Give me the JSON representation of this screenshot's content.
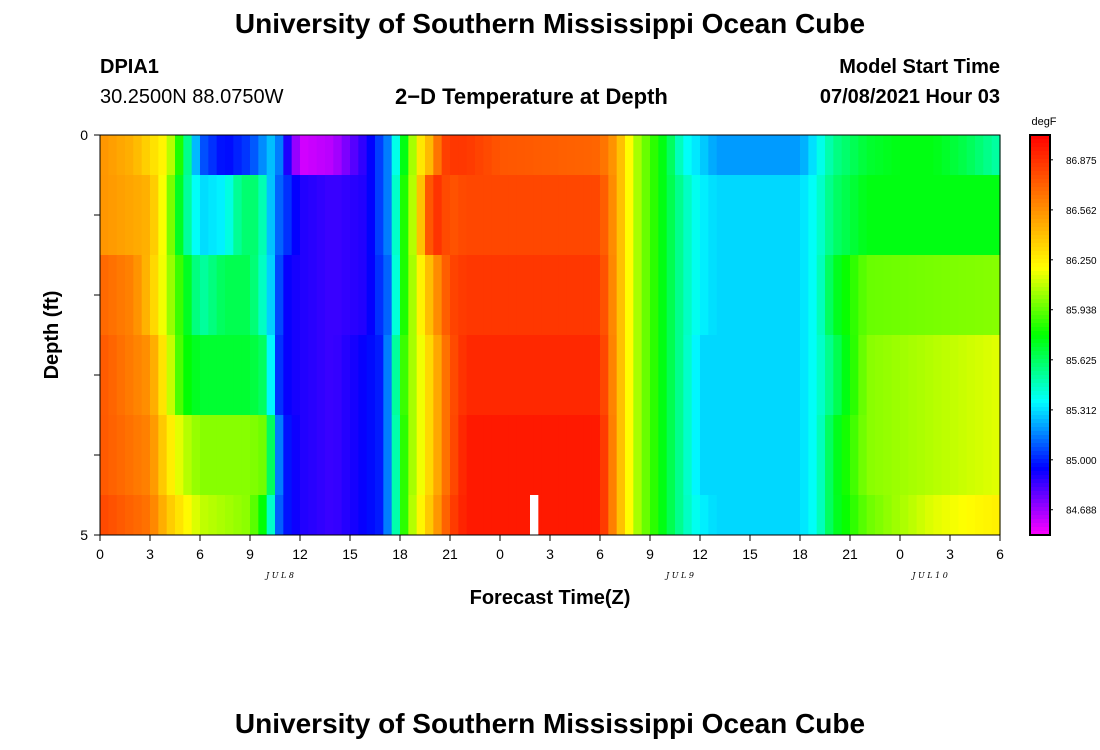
{
  "header": {
    "title": "University of Southern Mississippi Ocean Cube",
    "station": "DPIA1",
    "location": "30.2500N  88.0750W",
    "plot_title": "2−D Temperature at Depth",
    "model_start_label": "Model Start Time",
    "model_start_value": "07/08/2021 Hour 03"
  },
  "footer": {
    "title": "University of Southern Mississippi Ocean Cube"
  },
  "chart_data": {
    "type": "heatmap",
    "title": "2−D Temperature at Depth",
    "xlabel": "Forecast Time(Z)",
    "ylabel": "Depth (ft)",
    "x_range_hours": [
      0,
      54
    ],
    "y_range_ft": [
      0,
      5
    ],
    "x_tick_labels": [
      "0",
      "3",
      "6",
      "9",
      "12",
      "15",
      "18",
      "21",
      "0",
      "3",
      "6",
      "9",
      "12",
      "15",
      "18",
      "21",
      "0",
      "3",
      "6"
    ],
    "y_tick_labels": [
      "0",
      "5"
    ],
    "date_labels": [
      {
        "text": "JUL 8",
        "hour": 12
      },
      {
        "text": "JUL 9",
        "hour": 36
      },
      {
        "text": "JUL 10",
        "hour": 51
      }
    ],
    "colorbar": {
      "unit": "degF",
      "min": 84.53,
      "max": 87.03,
      "labels": [
        "86.875",
        "86.562",
        "86.250",
        "85.938",
        "85.625",
        "85.312",
        "85.000",
        "84.688"
      ],
      "colors": [
        "#ff00ff",
        "#8000ff",
        "#0000ff",
        "#0080ff",
        "#00ffff",
        "#00ff80",
        "#00ff00",
        "#80ff00",
        "#ffff00",
        "#ffc000",
        "#ff8000",
        "#ff4000",
        "#ff0000"
      ]
    },
    "depth_layers": [
      "0-0.5 ft",
      "0.5-1.5 ft",
      "1.5-2.5 ft",
      "2.5-3.5 ft",
      "3.5-4.5 ft",
      "4.5-5 ft"
    ],
    "layers": [
      {
        "depth": "0-0.5 ft",
        "breakpoints": [
          0,
          2,
          4,
          5,
          6,
          7.5,
          9,
          10.5,
          11,
          12,
          14,
          16,
          17.5,
          18,
          18.5,
          19,
          20,
          20.5,
          21,
          22,
          24,
          30,
          31,
          32,
          33,
          34,
          35,
          36,
          37,
          42,
          43,
          44,
          46,
          48,
          50,
          52,
          54
        ],
        "values": [
          86.55,
          86.45,
          86.2,
          85.7,
          85.1,
          84.95,
          85.05,
          85.3,
          85.0,
          84.6,
          84.65,
          84.9,
          85.2,
          85.6,
          85.9,
          86.2,
          86.5,
          86.8,
          86.85,
          86.85,
          86.75,
          86.7,
          86.5,
          86.1,
          85.9,
          85.7,
          85.4,
          85.3,
          85.2,
          85.2,
          85.35,
          85.55,
          85.7,
          85.75,
          85.75,
          85.65,
          85.5
        ]
      },
      {
        "depth": "0.5-1.5 ft",
        "breakpoints": [
          0,
          3,
          4,
          5,
          6,
          7.5,
          8.5,
          9.5,
          10.5,
          12,
          14,
          16,
          17.5,
          18,
          18.5,
          19,
          19.5,
          20,
          21,
          22,
          30,
          31,
          32,
          33,
          34,
          35,
          36,
          37,
          42,
          43,
          44,
          46,
          54
        ],
        "values": [
          86.55,
          86.45,
          86.1,
          85.6,
          85.3,
          85.35,
          85.6,
          85.6,
          85.15,
          84.9,
          84.85,
          84.9,
          85.2,
          85.7,
          85.95,
          86.2,
          86.6,
          86.9,
          86.75,
          86.8,
          86.8,
          86.5,
          86.1,
          85.9,
          85.7,
          85.5,
          85.35,
          85.3,
          85.3,
          85.4,
          85.6,
          85.75,
          85.75
        ]
      },
      {
        "depth": "1.5-2.5 ft",
        "breakpoints": [
          0,
          2,
          3,
          4,
          5,
          6,
          7.5,
          9,
          10,
          11,
          12,
          14,
          16,
          17.5,
          18,
          18.5,
          19,
          20,
          21,
          22,
          30,
          31,
          32,
          33,
          34,
          35,
          36,
          37,
          42,
          43,
          44,
          46,
          54
        ],
        "values": [
          86.7,
          86.6,
          86.4,
          86.1,
          85.8,
          85.5,
          85.65,
          85.65,
          85.4,
          84.95,
          84.9,
          84.85,
          84.9,
          85.15,
          85.7,
          85.95,
          86.15,
          86.5,
          86.8,
          86.85,
          86.85,
          86.5,
          86.1,
          85.9,
          85.7,
          85.5,
          85.35,
          85.3,
          85.3,
          85.4,
          85.7,
          85.95,
          86.0
        ]
      },
      {
        "depth": "2.5-3.5 ft",
        "breakpoints": [
          0,
          3,
          4,
          5,
          6,
          9,
          10,
          10.5,
          11,
          12,
          14,
          17,
          17.5,
          18,
          18.5,
          19,
          20,
          21,
          22,
          30,
          31,
          32,
          33,
          34,
          35,
          36,
          37,
          42,
          43,
          44,
          46,
          54
        ],
        "values": [
          86.75,
          86.55,
          86.2,
          85.8,
          85.7,
          85.7,
          85.6,
          85.1,
          84.95,
          84.9,
          84.85,
          85.0,
          85.3,
          85.75,
          86.0,
          86.1,
          86.4,
          86.75,
          86.9,
          86.9,
          86.5,
          86.1,
          85.9,
          85.7,
          85.5,
          85.3,
          85.3,
          85.3,
          85.4,
          85.6,
          86.0,
          86.15
        ]
      },
      {
        "depth": "3.5-4.5 ft",
        "breakpoints": [
          0,
          3,
          4,
          5,
          6,
          9,
          10,
          10.5,
          11,
          12,
          14,
          17,
          17.5,
          18,
          18.5,
          19,
          20,
          21,
          22,
          30,
          31,
          32,
          33,
          34,
          35,
          36,
          37,
          42,
          43,
          44,
          46,
          54
        ],
        "values": [
          86.75,
          86.6,
          86.3,
          86.1,
          86.0,
          86.0,
          85.95,
          85.3,
          85.0,
          84.9,
          84.85,
          85.0,
          85.3,
          85.7,
          86.0,
          86.1,
          86.4,
          86.75,
          86.95,
          86.95,
          86.5,
          86.1,
          85.9,
          85.7,
          85.5,
          85.3,
          85.3,
          85.3,
          85.4,
          85.7,
          86.0,
          86.15
        ]
      },
      {
        "depth": "4.5-5 ft",
        "breakpoints": [
          0,
          3,
          4,
          5,
          6,
          9,
          10,
          10.5,
          11,
          12,
          14,
          17,
          17.5,
          18,
          18.5,
          19,
          20,
          21,
          22,
          30,
          31,
          32,
          33,
          34,
          35,
          36,
          37,
          42,
          43,
          44,
          46,
          50,
          54
        ],
        "values": [
          86.8,
          86.65,
          86.4,
          86.25,
          86.1,
          86.0,
          85.7,
          85.2,
          85.0,
          84.9,
          84.85,
          85.0,
          85.3,
          85.7,
          86.0,
          86.15,
          86.45,
          86.8,
          86.95,
          86.95,
          86.5,
          86.1,
          85.9,
          85.7,
          85.5,
          85.35,
          85.3,
          85.3,
          85.4,
          85.7,
          85.95,
          86.15,
          86.25
        ]
      }
    ],
    "missing_cells": [
      {
        "depth_layer": "4.5-5 ft",
        "hour_start": 25.8,
        "hour_end": 26.3
      }
    ]
  }
}
